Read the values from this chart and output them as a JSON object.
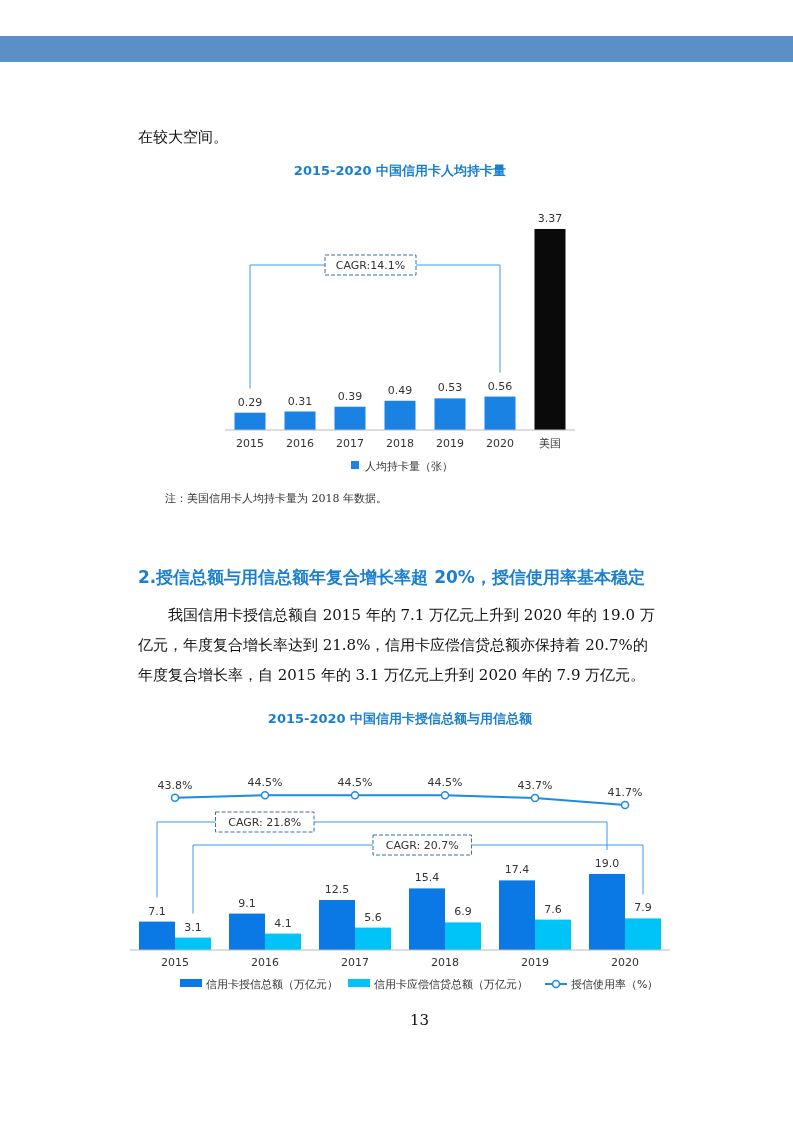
{
  "chart_data": [
    {
      "type": "other",
      "annotations": [
        "在较大空间。"
      ]
    },
    {
      "type": "bar",
      "title": "2015-2020 中国信用卡人均持卡量",
      "categories": [
        "2015",
        "2016",
        "2017",
        "2018",
        "2019",
        "2020",
        "美国"
      ],
      "series": [
        {
          "name": "人均持卡量（张）",
          "color": "#1a82e2",
          "colors": [
            "#1a82e2",
            "#1a82e2",
            "#1a82e2",
            "#1a82e2",
            "#1a82e2",
            "#1a82e2",
            "#0a0a0a"
          ],
          "values": [
            0.29,
            0.31,
            0.39,
            0.49,
            0.53,
            0.56,
            3.37
          ]
        }
      ],
      "data_labels": true,
      "legend": "bottom",
      "annotations": [
        "CAGR:14.1%",
        "注：美国信用卡人均持卡量为 2018 年数据。"
      ]
    },
    {
      "type": "other",
      "title": "2.授信总额与用信总额年复合增长率超 20%，授信使用率基本稳定",
      "annotations": [
        "我国信用卡授信总额自 2015 年的 7.1 万亿元上升到 2020 年的 19.0 万亿元，年度复合增长率达到 21.8%，信用卡应偿信贷总额亦保持着 20.7%的年度复合增长率，自 2015 年的 3.1 万亿元上升到 2020 年的 7.9 万亿元。"
      ]
    },
    {
      "type": "other",
      "title": "2015-2020 中国信用卡授信总额与用信总额"
    },
    {
      "type": "bar",
      "categories": [
        "2015",
        "2016",
        "2017",
        "2018",
        "2019",
        "2020"
      ],
      "series": [
        {
          "name": "信用卡授信总额（万亿元）",
          "color": "#0a79e6",
          "values": [
            7.1,
            9.1,
            12.5,
            15.4,
            17.4,
            19.0
          ],
          "value_labels": [
            "7.1",
            "9.1",
            "12.5",
            "15.4",
            "17.4",
            "19.0"
          ]
        },
        {
          "name": "信用卡应偿信贷总额（万亿元）",
          "color": "#00c3f7",
          "values": [
            3.1,
            4.1,
            5.6,
            6.9,
            7.6,
            7.9
          ],
          "value_labels": [
            "3.1",
            "4.1",
            "5.6",
            "6.9",
            "7.6",
            "7.9"
          ]
        }
      ],
      "data_labels": true,
      "legend": "bottom",
      "annotations": [
        "CAGR: 21.8%",
        "CAGR: 20.7%"
      ]
    },
    {
      "type": "line",
      "categories": [
        null,
        null,
        null,
        null,
        null,
        null
      ],
      "series": [
        {
          "name": "授信使用率（%）",
          "color": "#1c8ce3",
          "values": [
            43.8,
            44.5,
            44.5,
            44.5,
            43.7,
            41.7
          ],
          "value_labels": [
            "43.8%",
            "44.5%",
            "44.5%",
            "44.5%",
            "43.7%",
            "41.7%"
          ]
        }
      ],
      "data_labels": true,
      "legend": "bottom",
      "marker": "circle"
    },
    {
      "type": "other",
      "annotations": [
        "13"
      ]
    }
  ]
}
